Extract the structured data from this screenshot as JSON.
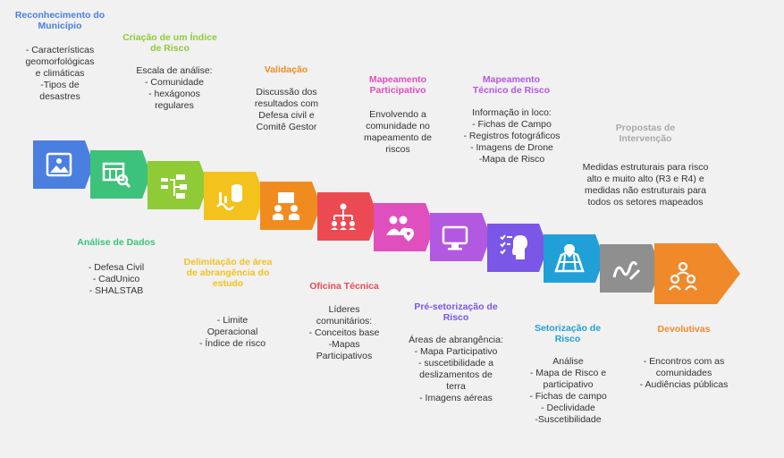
{
  "colors": {
    "s1": "#4a7fe0",
    "s2": "#3cc27a",
    "s3": "#8fcb36",
    "s4": "#f4c21c",
    "s5": "#f08c1f",
    "s6": "#ec4a52",
    "s7": "#e04fbe",
    "s8": "#b358e0",
    "s9": "#7a57e6",
    "s10": "#21a0d8",
    "s11": "#8f8f8f",
    "s12": "#f0892a"
  },
  "steps": [
    {
      "title": "Reconhecimento do Município",
      "lines": [
        "- Características",
        "geomorfológicas",
        "e climáticas",
        "-Tipos de",
        "desastres"
      ],
      "icon": "image-icon"
    },
    {
      "title": "Análise de Dados",
      "lines": [
        "- Defesa Civil",
        "- CadUnico",
        "- SHALSTAB"
      ],
      "icon": "table-search-icon"
    },
    {
      "title": "Criação de um Índice de Risco",
      "lines": [
        "Escala de análise:",
        "- Comunidade",
        "- hexágonos",
        "regulares"
      ],
      "icon": "flow-icon"
    },
    {
      "title": "Delimitação de área de abrangência do estudo",
      "lines": [
        "- Limite",
        "Operacional",
        "- Índice de risco"
      ],
      "icon": "chart-data-icon"
    },
    {
      "title": "Validação",
      "lines": [
        "Discussão dos",
        "resultados com",
        "Defesa civil e",
        "Comitê Gestor"
      ],
      "icon": "team-board-icon"
    },
    {
      "title": "Oficina Técnica",
      "lines": [
        "Líderes",
        "comunitários:",
        "- Conceitos base",
        "-Mapas",
        "Participativos"
      ],
      "icon": "hierarchy-icon"
    },
    {
      "title": "Mapeamento Participativo",
      "lines": [
        "Envolvendo a",
        "comunidade no",
        "mapeamento de",
        "riscos"
      ],
      "icon": "people-location-icon"
    },
    {
      "title": "Pré-setorização de Risco",
      "lines": [
        "Áreas de abrangência:",
        "- Mapa Participativo",
        "- suscetibilidade a",
        "deslizamentos de",
        "terra",
        "- Imagens aéreas"
      ],
      "icon": "monitor-icon"
    },
    {
      "title": "Mapeamento Técnico de Risco",
      "lines": [
        "Informação in loco:",
        "- Fichas de Campo",
        "- Registros fotográficos",
        "- Imagens de Drone",
        "-Mapa de Risco"
      ],
      "icon": "checklist-head-icon"
    },
    {
      "title": "Setorização de Risco",
      "lines": [
        "Análise",
        "- Mapa de Risco e",
        "participativo",
        "- Fichas de campo",
        "- Declividade",
        "-Suscetibilidade"
      ],
      "icon": "map-grid-icon"
    },
    {
      "title": "Propostas de Intervenção",
      "lines": [
        "Medidas estruturais para risco",
        "alto e muito alto (R3 e R4) e",
        "medidas não estruturais para",
        "todos os setores mapeados"
      ],
      "icon": "signature-icon"
    },
    {
      "title": "Devolutivas",
      "lines": [
        "- Encontros com as",
        "comunidades",
        "- Audiências públicas"
      ],
      "icon": "group-icon"
    }
  ]
}
